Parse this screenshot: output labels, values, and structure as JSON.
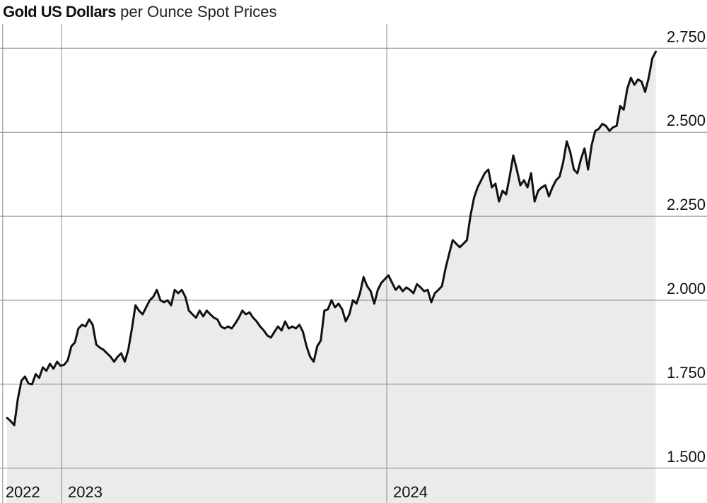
{
  "chart_data": {
    "type": "area",
    "title": "Gold US Dollars",
    "subtitle": "per Ounce Spot Prices",
    "xlabel": "",
    "ylabel": "",
    "ylim": [
      1500,
      2750
    ],
    "grid": true,
    "y_ticks": [
      {
        "value": 1500,
        "label": "1.500"
      },
      {
        "value": 1750,
        "label": "1.750"
      },
      {
        "value": 2000,
        "label": "2.000"
      },
      {
        "value": 2250,
        "label": "2.250"
      },
      {
        "value": 2500,
        "label": "2.500"
      },
      {
        "value": 2750,
        "label": "2.750"
      }
    ],
    "x_ticks": [
      {
        "date": "2022-10-27",
        "label": "2022"
      },
      {
        "date": "2023-01-01",
        "label": "2023"
      },
      {
        "date": "2024-01-01",
        "label": "2024"
      }
    ],
    "line_color": "#111111",
    "fill_color": "#ebebeb",
    "dates": [
      "2022-11-01",
      "2022-11-05",
      "2022-11-09",
      "2022-11-13",
      "2022-11-17",
      "2022-11-21",
      "2022-11-25",
      "2022-11-29",
      "2022-12-03",
      "2022-12-07",
      "2022-12-11",
      "2022-12-15",
      "2022-12-19",
      "2022-12-23",
      "2022-12-27",
      "2022-12-31",
      "2023-01-04",
      "2023-01-08",
      "2023-01-12",
      "2023-01-16",
      "2023-01-20",
      "2023-01-24",
      "2023-01-28",
      "2023-02-01",
      "2023-02-05",
      "2023-02-09",
      "2023-02-13",
      "2023-02-17",
      "2023-02-21",
      "2023-02-25",
      "2023-03-01",
      "2023-03-05",
      "2023-03-09",
      "2023-03-13",
      "2023-03-17",
      "2023-03-21",
      "2023-03-25",
      "2023-03-29",
      "2023-04-02",
      "2023-04-06",
      "2023-04-10",
      "2023-04-14",
      "2023-04-18",
      "2023-04-22",
      "2023-04-26",
      "2023-04-30",
      "2023-05-04",
      "2023-05-08",
      "2023-05-12",
      "2023-05-16",
      "2023-05-20",
      "2023-05-24",
      "2023-05-28",
      "2023-06-01",
      "2023-06-05",
      "2023-06-09",
      "2023-06-13",
      "2023-06-17",
      "2023-06-21",
      "2023-06-25",
      "2023-06-29",
      "2023-07-03",
      "2023-07-07",
      "2023-07-11",
      "2023-07-15",
      "2023-07-19",
      "2023-07-23",
      "2023-07-27",
      "2023-07-31",
      "2023-08-04",
      "2023-08-08",
      "2023-08-12",
      "2023-08-16",
      "2023-08-20",
      "2023-08-24",
      "2023-08-28",
      "2023-09-01",
      "2023-09-05",
      "2023-09-09",
      "2023-09-13",
      "2023-09-17",
      "2023-09-21",
      "2023-09-25",
      "2023-09-29",
      "2023-10-03",
      "2023-10-07",
      "2023-10-11",
      "2023-10-15",
      "2023-10-19",
      "2023-10-23",
      "2023-10-27",
      "2023-10-31",
      "2023-11-04",
      "2023-11-08",
      "2023-11-12",
      "2023-11-16",
      "2023-11-20",
      "2023-11-24",
      "2023-11-28",
      "2023-12-02",
      "2023-12-06",
      "2023-12-10",
      "2023-12-14",
      "2023-12-18",
      "2023-12-22",
      "2023-12-26",
      "2023-12-30",
      "2024-01-03",
      "2024-01-07",
      "2024-01-11",
      "2024-01-15",
      "2024-01-19",
      "2024-01-23",
      "2024-01-27",
      "2024-01-31",
      "2024-02-04",
      "2024-02-08",
      "2024-02-12",
      "2024-02-16",
      "2024-02-20",
      "2024-02-24",
      "2024-02-28",
      "2024-03-03",
      "2024-03-07",
      "2024-03-11",
      "2024-03-15",
      "2024-03-19",
      "2024-03-23",
      "2024-03-27",
      "2024-03-31",
      "2024-04-04",
      "2024-04-08",
      "2024-04-12",
      "2024-04-16",
      "2024-04-20",
      "2024-04-24",
      "2024-04-28",
      "2024-05-02",
      "2024-05-06",
      "2024-05-10",
      "2024-05-14",
      "2024-05-18",
      "2024-05-22",
      "2024-05-26",
      "2024-05-30",
      "2024-06-03",
      "2024-06-07",
      "2024-06-11",
      "2024-06-15",
      "2024-06-19",
      "2024-06-23",
      "2024-06-27",
      "2024-07-01",
      "2024-07-05",
      "2024-07-09",
      "2024-07-13",
      "2024-07-17",
      "2024-07-21",
      "2024-07-25",
      "2024-07-29",
      "2024-08-02",
      "2024-08-06",
      "2024-08-10",
      "2024-08-14",
      "2024-08-18",
      "2024-08-22",
      "2024-08-26",
      "2024-08-30",
      "2024-09-03",
      "2024-09-07",
      "2024-09-11",
      "2024-09-15",
      "2024-09-19",
      "2024-09-23",
      "2024-09-27",
      "2024-10-01",
      "2024-10-05",
      "2024-10-09",
      "2024-10-13",
      "2024-10-17",
      "2024-10-21",
      "2024-10-25",
      "2024-10-29"
    ],
    "values": [
      1650,
      1640,
      1628,
      1706,
      1760,
      1773,
      1752,
      1750,
      1780,
      1769,
      1800,
      1790,
      1811,
      1796,
      1817,
      1805,
      1808,
      1821,
      1863,
      1874,
      1916,
      1927,
      1922,
      1943,
      1927,
      1868,
      1859,
      1853,
      1842,
      1832,
      1817,
      1832,
      1842,
      1817,
      1853,
      1916,
      1985,
      1969,
      1958,
      1979,
      2000,
      2010,
      2031,
      2000,
      1994,
      2000,
      1985,
      2031,
      2021,
      2031,
      2010,
      1969,
      1958,
      1948,
      1969,
      1952,
      1969,
      1958,
      1948,
      1943,
      1922,
      1916,
      1922,
      1916,
      1931,
      1948,
      1969,
      1958,
      1964,
      1948,
      1937,
      1922,
      1910,
      1895,
      1889,
      1906,
      1922,
      1910,
      1937,
      1916,
      1922,
      1916,
      1927,
      1906,
      1863,
      1832,
      1817,
      1863,
      1880,
      1969,
      1973,
      2000,
      1979,
      1990,
      1973,
      1937,
      1958,
      2000,
      1990,
      2021,
      2069,
      2042,
      2027,
      1990,
      2031,
      2052,
      2063,
      2074,
      2052,
      2031,
      2042,
      2027,
      2038,
      2031,
      2021,
      2048,
      2038,
      2027,
      2031,
      1994,
      2021,
      2031,
      2042,
      2095,
      2137,
      2179,
      2168,
      2158,
      2168,
      2179,
      2252,
      2305,
      2336,
      2357,
      2378,
      2389,
      2336,
      2347,
      2294,
      2326,
      2315,
      2368,
      2431,
      2389,
      2342,
      2357,
      2336,
      2378,
      2294,
      2326,
      2336,
      2342,
      2309,
      2336,
      2357,
      2368,
      2410,
      2473,
      2441,
      2389,
      2378,
      2420,
      2452,
      2389,
      2462,
      2504,
      2510,
      2525,
      2519,
      2504,
      2515,
      2519,
      2578,
      2567,
      2630,
      2662,
      2641,
      2657,
      2651,
      2620,
      2662,
      2720,
      2740
    ]
  }
}
